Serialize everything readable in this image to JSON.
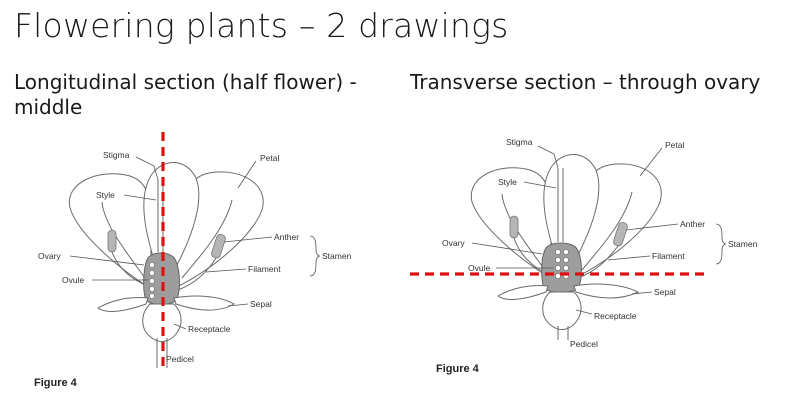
{
  "slide": {
    "title": "Flowering plants – 2 drawings",
    "left_heading": "Longitudinal section (half flower) - middle",
    "right_heading": "Transverse section – through ovary"
  },
  "left_figure": {
    "caption": "Figure 4",
    "labels": {
      "stigma": "Stigma",
      "petal": "Petal",
      "style": "Style",
      "anther": "Anther",
      "stamen": "Stamen",
      "ovary": "Ovary",
      "filament": "Filament",
      "ovule": "Ovule",
      "sepal": "Sepal",
      "receptacle": "Receptacle",
      "pedicel": "Pedicel"
    },
    "cut_line": {
      "orientation": "vertical",
      "color": "#e01010",
      "style": "dashed"
    }
  },
  "right_figure": {
    "caption": "Figure 4",
    "labels": {
      "stigma": "Stigma",
      "petal": "Petal",
      "style": "Style",
      "anther": "Anther",
      "stamen": "Stamen",
      "ovary": "Ovary",
      "filament": "Filament",
      "ovule": "Ovule",
      "sepal": "Sepal",
      "receptacle": "Receptacle",
      "pedicel": "Pedicel"
    },
    "cut_line": {
      "orientation": "horizontal",
      "color": "#e01010",
      "style": "dashed"
    }
  }
}
